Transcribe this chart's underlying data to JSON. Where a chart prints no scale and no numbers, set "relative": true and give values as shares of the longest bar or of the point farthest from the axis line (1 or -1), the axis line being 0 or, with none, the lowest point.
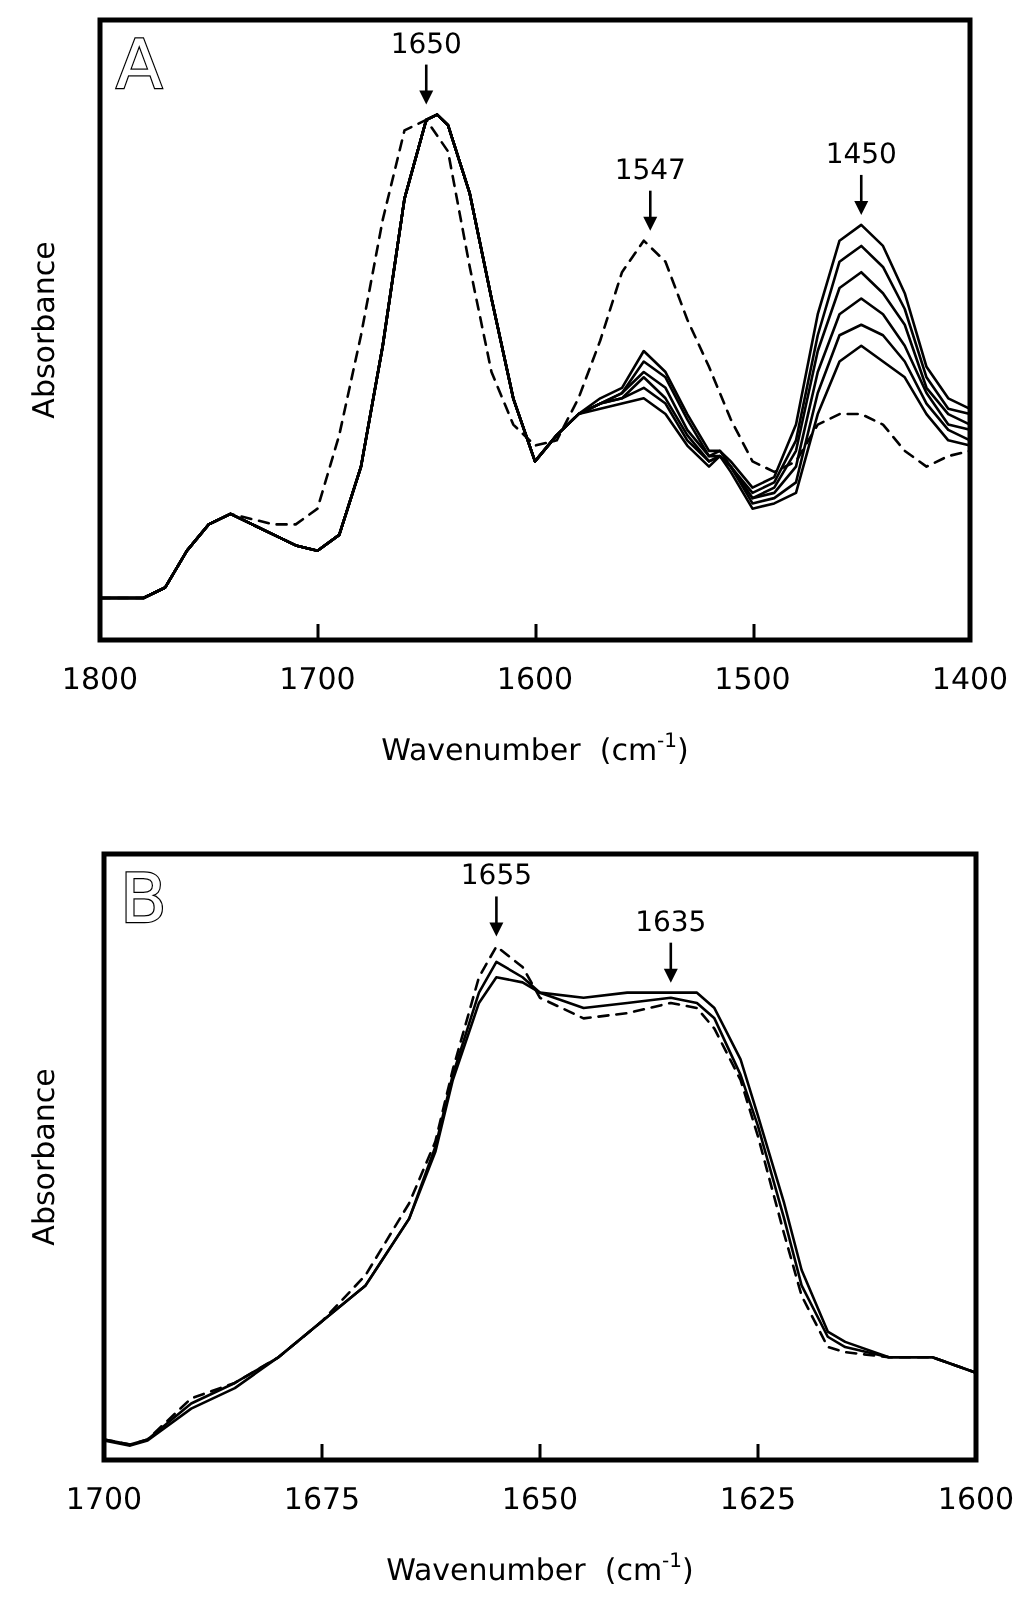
{
  "chart_data": [
    {
      "type": "line",
      "xlabel": "Wavenumber  (cm$^{-1}$)",
      "ylabel": "Absorbance",
      "relative": true,
      "marker": "none",
      "xlim": [
        1800,
        1400
      ],
      "xticks": [
        1800,
        1700,
        1600,
        1500,
        1400
      ],
      "annotations": [
        "A",
        {
          "text": "1650",
          "x": 1650,
          "y": 1.0
        },
        {
          "text": "1547",
          "x": 1547,
          "y": 0.76
        },
        {
          "text": "1450",
          "x": 1450,
          "y": 0.79
        }
      ],
      "x": [
        1800,
        1780,
        1770,
        1760,
        1750,
        1740,
        1730,
        1720,
        1710,
        1700,
        1690,
        1680,
        1670,
        1660,
        1650,
        1645,
        1640,
        1630,
        1620,
        1610,
        1600,
        1590,
        1580,
        1570,
        1560,
        1550,
        1540,
        1530,
        1520,
        1515,
        1510,
        1500,
        1490,
        1480,
        1470,
        1460,
        1450,
        1440,
        1430,
        1420,
        1410,
        1400
      ],
      "series": [
        {
          "color": "#000000",
          "line_style": "dashed",
          "values": [
            0.08,
            0.08,
            0.1,
            0.17,
            0.22,
            0.24,
            0.23,
            0.22,
            0.22,
            0.25,
            0.39,
            0.58,
            0.8,
            0.97,
            0.99,
            0.96,
            0.93,
            0.71,
            0.51,
            0.41,
            0.37,
            0.38,
            0.46,
            0.57,
            0.7,
            0.76,
            0.72,
            0.61,
            0.52,
            0.47,
            0.42,
            0.34,
            0.32,
            0.34,
            0.41,
            0.43,
            0.43,
            0.41,
            0.36,
            0.33,
            0.35,
            0.36
          ]
        },
        {
          "color": "#000000",
          "values": [
            0.08,
            0.08,
            0.1,
            0.17,
            0.22,
            0.24,
            0.22,
            0.2,
            0.18,
            0.17,
            0.2,
            0.33,
            0.56,
            0.84,
            0.99,
            1.0,
            0.98,
            0.85,
            0.65,
            0.46,
            0.34,
            0.39,
            0.43,
            0.46,
            0.48,
            0.55,
            0.51,
            0.43,
            0.36,
            0.36,
            0.34,
            0.29,
            0.31,
            0.41,
            0.62,
            0.76,
            0.79,
            0.75,
            0.66,
            0.52,
            0.46,
            0.44
          ]
        },
        {
          "color": "#000000",
          "values": [
            0.08,
            0.08,
            0.1,
            0.17,
            0.22,
            0.24,
            0.22,
            0.2,
            0.18,
            0.17,
            0.2,
            0.33,
            0.56,
            0.84,
            0.99,
            1.0,
            0.98,
            0.85,
            0.65,
            0.46,
            0.34,
            0.39,
            0.43,
            0.45,
            0.47,
            0.53,
            0.5,
            0.42,
            0.35,
            0.36,
            0.33,
            0.28,
            0.3,
            0.38,
            0.58,
            0.72,
            0.75,
            0.71,
            0.63,
            0.5,
            0.44,
            0.43
          ]
        },
        {
          "color": "#000000",
          "values": [
            0.08,
            0.08,
            0.1,
            0.17,
            0.22,
            0.24,
            0.22,
            0.2,
            0.18,
            0.17,
            0.2,
            0.33,
            0.56,
            0.84,
            0.99,
            1.0,
            0.98,
            0.85,
            0.65,
            0.46,
            0.34,
            0.39,
            0.43,
            0.45,
            0.47,
            0.51,
            0.48,
            0.4,
            0.35,
            0.35,
            0.33,
            0.27,
            0.29,
            0.36,
            0.55,
            0.67,
            0.7,
            0.66,
            0.6,
            0.48,
            0.43,
            0.41
          ]
        },
        {
          "color": "#000000",
          "values": [
            0.08,
            0.08,
            0.1,
            0.17,
            0.22,
            0.24,
            0.22,
            0.2,
            0.18,
            0.17,
            0.2,
            0.33,
            0.56,
            0.84,
            0.99,
            1.0,
            0.98,
            0.85,
            0.65,
            0.46,
            0.34,
            0.39,
            0.43,
            0.45,
            0.46,
            0.5,
            0.46,
            0.39,
            0.34,
            0.35,
            0.33,
            0.27,
            0.28,
            0.33,
            0.51,
            0.62,
            0.65,
            0.62,
            0.56,
            0.47,
            0.41,
            0.4
          ]
        },
        {
          "color": "#000000",
          "values": [
            0.08,
            0.08,
            0.1,
            0.17,
            0.22,
            0.24,
            0.22,
            0.2,
            0.18,
            0.17,
            0.2,
            0.33,
            0.56,
            0.84,
            0.99,
            1.0,
            0.98,
            0.85,
            0.65,
            0.46,
            0.34,
            0.39,
            0.43,
            0.45,
            0.46,
            0.48,
            0.45,
            0.38,
            0.34,
            0.35,
            0.33,
            0.26,
            0.27,
            0.3,
            0.47,
            0.58,
            0.6,
            0.58,
            0.53,
            0.45,
            0.4,
            0.38
          ]
        },
        {
          "color": "#000000",
          "values": [
            0.08,
            0.08,
            0.1,
            0.17,
            0.22,
            0.24,
            0.22,
            0.2,
            0.18,
            0.17,
            0.2,
            0.33,
            0.56,
            0.84,
            0.99,
            1.0,
            0.98,
            0.85,
            0.65,
            0.46,
            0.34,
            0.39,
            0.43,
            0.44,
            0.45,
            0.46,
            0.43,
            0.37,
            0.33,
            0.35,
            0.32,
            0.25,
            0.26,
            0.28,
            0.43,
            0.53,
            0.56,
            0.53,
            0.5,
            0.43,
            0.38,
            0.37
          ]
        }
      ]
    },
    {
      "type": "line",
      "xlabel": "Wavenumber  (cm$^{-1}$)",
      "ylabel": "Absorbance",
      "relative": true,
      "marker": "none",
      "xlim": [
        1700,
        1600
      ],
      "xticks": [
        1700,
        1675,
        1650,
        1625,
        1600
      ],
      "annotations": [
        "B",
        {
          "text": "1655",
          "x": 1655,
          "y": 1.0
        },
        {
          "text": "1635",
          "x": 1635,
          "y": 0.91
        }
      ],
      "x": [
        1700,
        1697,
        1695,
        1690,
        1685,
        1680,
        1675,
        1670,
        1665,
        1662,
        1660,
        1657,
        1655,
        1652,
        1650,
        1645,
        1640,
        1635,
        1632,
        1630,
        1627,
        1625,
        1622,
        1620,
        1617,
        1615,
        1610,
        1605,
        1600
      ],
      "series": [
        {
          "color": "#000000",
          "values": [
            0.038,
            0.028,
            0.038,
            0.1,
            0.14,
            0.2,
            0.27,
            0.34,
            0.47,
            0.6,
            0.74,
            0.89,
            0.94,
            0.93,
            0.91,
            0.9,
            0.91,
            0.91,
            0.91,
            0.88,
            0.78,
            0.67,
            0.5,
            0.37,
            0.25,
            0.23,
            0.2,
            0.2,
            0.17
          ]
        },
        {
          "color": "#000000",
          "values": [
            0.04,
            0.03,
            0.04,
            0.11,
            0.15,
            0.2,
            0.27,
            0.34,
            0.47,
            0.61,
            0.75,
            0.91,
            0.97,
            0.94,
            0.91,
            0.88,
            0.89,
            0.9,
            0.89,
            0.86,
            0.75,
            0.65,
            0.47,
            0.34,
            0.24,
            0.22,
            0.2,
            0.2,
            0.17
          ]
        },
        {
          "color": "#000000",
          "line_style": "dashed",
          "values": [
            0.04,
            0.03,
            0.04,
            0.12,
            0.15,
            0.2,
            0.27,
            0.36,
            0.5,
            0.62,
            0.76,
            0.94,
            1.0,
            0.96,
            0.9,
            0.86,
            0.87,
            0.89,
            0.88,
            0.84,
            0.74,
            0.63,
            0.44,
            0.32,
            0.22,
            0.21,
            0.2,
            0.2,
            0.17
          ]
        }
      ]
    }
  ]
}
